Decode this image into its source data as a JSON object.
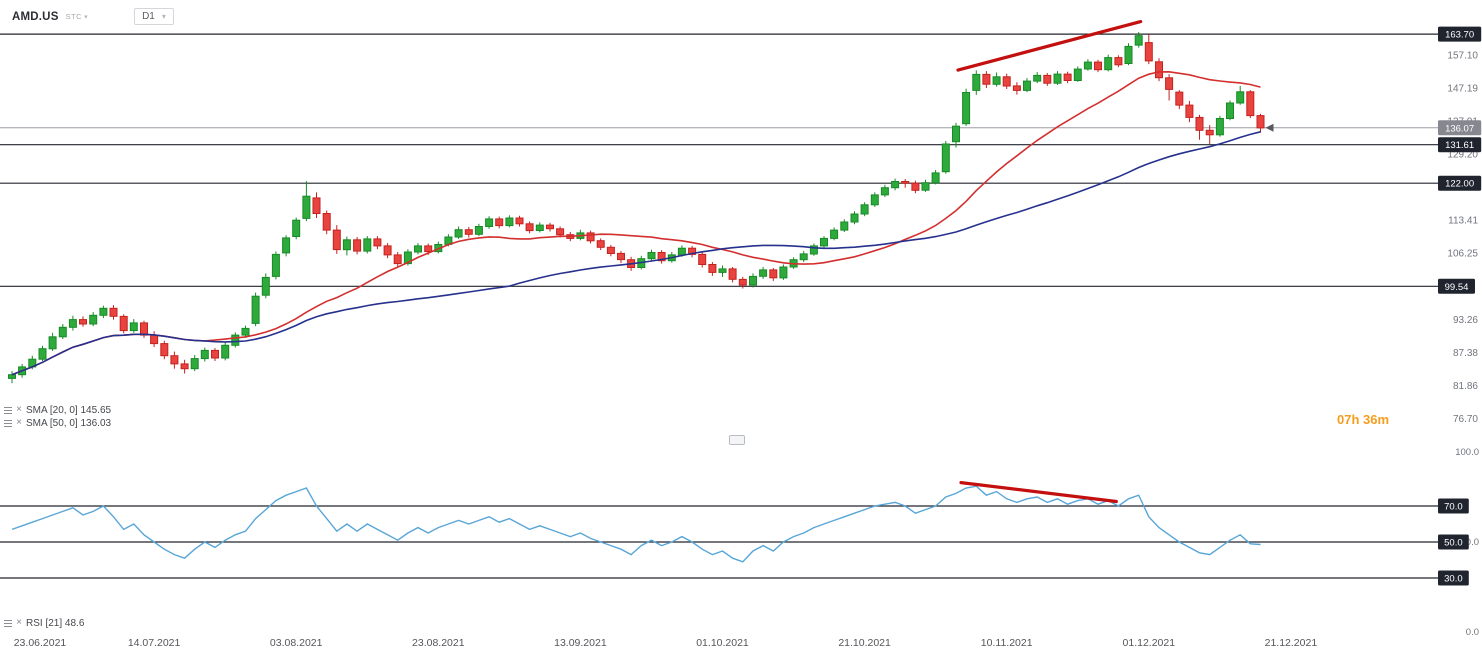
{
  "header": {
    "symbol": "AMD.US",
    "market_tag": "STC",
    "timeframe": "D1"
  },
  "indicators": {
    "sma20": {
      "label": "SMA [20, 0]",
      "value": "145.65"
    },
    "sma50": {
      "label": "SMA [50, 0]",
      "value": "136.03"
    },
    "rsi": {
      "label": "RSI [21]",
      "value": "48.6"
    }
  },
  "countdown": {
    "label": "07h 36m"
  },
  "colors": {
    "up": "#2eaa3c",
    "up_border": "#178a26",
    "down": "#e8433f",
    "down_border": "#c5221f",
    "sma20": "#d32f2f",
    "sma50": "#26318d",
    "rsi": "#58a6d8",
    "trendline": "#c40f0f",
    "level_line": "#23262f",
    "level_badge": "#20242f",
    "current_line": "#9b9ea6",
    "current_badge": "#85888f"
  },
  "chart_data": {
    "type": "candlestick",
    "symbol": "AMD.US",
    "timeframe": "D1",
    "price_axis_ticks": [
      "157.10",
      "147.19",
      "137.91",
      "129.20",
      "121.04",
      "113.41",
      "106.25",
      "93.26",
      "87.38",
      "81.86",
      "76.70"
    ],
    "rsi_axis_ticks": [
      "100.0",
      "50.0",
      "0.0"
    ],
    "levels": [
      {
        "price": 163.7,
        "label": "163.70"
      },
      {
        "price": 131.61,
        "label": "131.61"
      },
      {
        "price": 122.0,
        "label": "122.00"
      },
      {
        "price": 99.54,
        "label": "99.54"
      }
    ],
    "rsi_levels": [
      {
        "value": 70,
        "label": "70.0"
      },
      {
        "value": 50,
        "label": "50.0"
      },
      {
        "value": 30,
        "label": "30.0"
      }
    ],
    "current_price": {
      "value": 136.07,
      "label": "136.07"
    },
    "time_labels": [
      {
        "i": 0,
        "label": "23.06.2021"
      },
      {
        "i": 14,
        "label": "14.07.2021"
      },
      {
        "i": 28,
        "label": "03.08.2021"
      },
      {
        "i": 42,
        "label": "23.08.2021"
      },
      {
        "i": 56,
        "label": "13.09.2021"
      },
      {
        "i": 70,
        "label": "01.10.2021"
      },
      {
        "i": 84,
        "label": "21.10.2021"
      },
      {
        "i": 98,
        "label": "10.11.2021"
      },
      {
        "i": 112,
        "label": "01.12.2021"
      },
      {
        "i": 126,
        "label": "21.12.2021"
      }
    ],
    "trendlines": [
      {
        "pane": "price",
        "from_i": 93.2,
        "from_v": 152.5,
        "to_i": 111.2,
        "to_v": 167.8
      },
      {
        "pane": "rsi",
        "from_i": 93.5,
        "from_v": 83.0,
        "to_i": 108.8,
        "to_v": 72.5
      }
    ],
    "candles": [
      [
        83.0,
        84.2,
        82.2,
        83.6
      ],
      [
        83.6,
        85.4,
        83.1,
        84.9
      ],
      [
        84.9,
        86.8,
        84.5,
        86.2
      ],
      [
        86.2,
        88.5,
        85.9,
        88.0
      ],
      [
        88.0,
        90.8,
        87.6,
        90.1
      ],
      [
        90.1,
        92.4,
        89.7,
        91.8
      ],
      [
        91.8,
        93.9,
        91.2,
        93.2
      ],
      [
        93.2,
        93.8,
        91.9,
        92.4
      ],
      [
        92.4,
        94.6,
        92.0,
        94.0
      ],
      [
        94.0,
        95.8,
        93.5,
        95.3
      ],
      [
        95.3,
        95.9,
        93.2,
        93.8
      ],
      [
        93.8,
        94.2,
        90.7,
        91.2
      ],
      [
        91.2,
        93.3,
        90.8,
        92.6
      ],
      [
        92.6,
        93.0,
        89.9,
        90.4
      ],
      [
        90.4,
        91.1,
        88.3,
        88.9
      ],
      [
        88.9,
        89.4,
        86.2,
        86.8
      ],
      [
        86.8,
        87.5,
        84.6,
        85.4
      ],
      [
        85.4,
        86.1,
        83.8,
        84.6
      ],
      [
        84.6,
        86.9,
        84.2,
        86.3
      ],
      [
        86.3,
        88.2,
        85.8,
        87.7
      ],
      [
        87.7,
        88.1,
        85.9,
        86.4
      ],
      [
        86.4,
        89.1,
        86.0,
        88.6
      ],
      [
        88.6,
        90.9,
        88.2,
        90.4
      ],
      [
        90.4,
        92.1,
        89.9,
        91.6
      ],
      [
        92.5,
        98.3,
        92.0,
        97.6
      ],
      [
        97.8,
        102.1,
        97.2,
        101.3
      ],
      [
        101.5,
        106.6,
        100.9,
        106.0
      ],
      [
        106.3,
        110.1,
        105.6,
        109.5
      ],
      [
        109.8,
        114.0,
        109.2,
        113.4
      ],
      [
        113.8,
        122.5,
        113.2,
        118.9
      ],
      [
        118.5,
        119.8,
        113.9,
        114.9
      ],
      [
        114.9,
        115.6,
        110.3,
        111.2
      ],
      [
        111.2,
        112.3,
        106.1,
        107.0
      ],
      [
        107.0,
        109.8,
        105.8,
        109.1
      ],
      [
        109.1,
        109.7,
        106.0,
        106.7
      ],
      [
        106.7,
        109.9,
        106.2,
        109.3
      ],
      [
        109.3,
        109.9,
        107.1,
        107.8
      ],
      [
        107.8,
        108.4,
        105.2,
        105.9
      ],
      [
        105.9,
        106.5,
        103.3,
        104.1
      ],
      [
        104.1,
        107.1,
        103.7,
        106.5
      ],
      [
        106.5,
        108.4,
        106.0,
        107.8
      ],
      [
        107.8,
        108.3,
        105.9,
        106.6
      ],
      [
        106.6,
        108.7,
        106.2,
        108.1
      ],
      [
        108.1,
        110.3,
        107.7,
        109.7
      ],
      [
        109.7,
        112.0,
        109.3,
        111.3
      ],
      [
        111.3,
        111.9,
        109.6,
        110.3
      ],
      [
        110.3,
        112.6,
        109.9,
        112.0
      ],
      [
        112.0,
        114.3,
        111.5,
        113.7
      ],
      [
        113.7,
        114.2,
        111.6,
        112.2
      ],
      [
        112.2,
        114.5,
        111.8,
        113.9
      ],
      [
        113.9,
        114.4,
        112.0,
        112.6
      ],
      [
        112.6,
        113.1,
        110.5,
        111.1
      ],
      [
        111.1,
        112.9,
        110.7,
        112.3
      ],
      [
        112.3,
        112.8,
        110.9,
        111.5
      ],
      [
        111.5,
        112.0,
        109.6,
        110.2
      ],
      [
        110.2,
        110.8,
        108.8,
        109.4
      ],
      [
        109.4,
        111.3,
        109.0,
        110.6
      ],
      [
        110.6,
        111.1,
        108.3,
        108.9
      ],
      [
        108.9,
        109.4,
        106.9,
        107.5
      ],
      [
        107.5,
        108.0,
        105.6,
        106.2
      ],
      [
        106.2,
        106.7,
        104.2,
        104.9
      ],
      [
        104.9,
        105.5,
        102.6,
        103.3
      ],
      [
        103.3,
        105.7,
        102.9,
        105.1
      ],
      [
        105.1,
        107.0,
        104.7,
        106.4
      ],
      [
        106.4,
        106.9,
        104.1,
        104.7
      ],
      [
        104.7,
        106.5,
        104.3,
        105.9
      ],
      [
        105.9,
        107.9,
        105.5,
        107.3
      ],
      [
        107.3,
        107.8,
        105.4,
        106.0
      ],
      [
        106.0,
        106.5,
        103.3,
        103.9
      ],
      [
        103.9,
        104.4,
        101.6,
        102.3
      ],
      [
        102.3,
        103.7,
        101.4,
        103.0
      ],
      [
        103.0,
        103.4,
        100.3,
        100.9
      ],
      [
        100.9,
        101.4,
        99.1,
        99.8
      ],
      [
        99.8,
        102.1,
        99.3,
        101.5
      ],
      [
        101.5,
        103.4,
        101.0,
        102.8
      ],
      [
        102.8,
        103.2,
        100.6,
        101.2
      ],
      [
        101.2,
        103.9,
        100.8,
        103.4
      ],
      [
        103.4,
        105.4,
        103.0,
        104.9
      ],
      [
        104.9,
        106.7,
        104.4,
        106.1
      ],
      [
        106.1,
        108.3,
        105.7,
        107.8
      ],
      [
        107.8,
        109.9,
        107.3,
        109.4
      ],
      [
        109.4,
        111.8,
        109.0,
        111.2
      ],
      [
        111.2,
        113.6,
        110.8,
        113.0
      ],
      [
        113.0,
        115.4,
        112.5,
        114.8
      ],
      [
        114.8,
        117.5,
        114.3,
        116.9
      ],
      [
        116.9,
        119.8,
        116.4,
        119.2
      ],
      [
        119.2,
        121.6,
        118.7,
        120.9
      ],
      [
        120.9,
        123.1,
        120.3,
        122.4
      ],
      [
        122.4,
        123.0,
        120.9,
        122.0
      ],
      [
        122.0,
        122.6,
        119.6,
        120.3
      ],
      [
        120.3,
        122.8,
        119.9,
        122.1
      ],
      [
        122.1,
        125.2,
        121.7,
        124.5
      ],
      [
        124.8,
        132.6,
        124.3,
        131.8
      ],
      [
        132.4,
        137.4,
        130.9,
        136.5
      ],
      [
        137.2,
        147.0,
        136.6,
        145.9
      ],
      [
        146.5,
        152.4,
        145.2,
        151.2
      ],
      [
        151.2,
        152.2,
        147.2,
        148.3
      ],
      [
        148.3,
        151.8,
        147.6,
        150.5
      ],
      [
        150.5,
        151.4,
        146.9,
        147.8
      ],
      [
        147.8,
        148.9,
        145.3,
        146.5
      ],
      [
        146.5,
        150.1,
        146.0,
        149.2
      ],
      [
        149.2,
        151.9,
        148.6,
        150.9
      ],
      [
        150.9,
        151.6,
        147.8,
        148.6
      ],
      [
        148.6,
        152.2,
        148.1,
        151.3
      ],
      [
        151.3,
        152.0,
        148.6,
        149.4
      ],
      [
        149.4,
        153.6,
        149.0,
        152.8
      ],
      [
        152.8,
        155.8,
        152.3,
        154.9
      ],
      [
        154.9,
        155.6,
        151.9,
        152.6
      ],
      [
        152.6,
        157.2,
        152.1,
        156.3
      ],
      [
        156.3,
        157.0,
        153.4,
        154.1
      ],
      [
        154.5,
        160.8,
        154.0,
        159.8
      ],
      [
        160.2,
        164.4,
        159.4,
        163.2
      ],
      [
        161.0,
        163.6,
        154.3,
        155.3
      ],
      [
        155.0,
        156.1,
        149.2,
        150.2
      ],
      [
        150.2,
        151.3,
        143.6,
        146.8
      ],
      [
        146.0,
        146.6,
        141.2,
        142.3
      ],
      [
        142.3,
        143.5,
        137.6,
        138.9
      ],
      [
        138.9,
        139.6,
        132.9,
        135.4
      ],
      [
        135.4,
        136.8,
        131.8,
        134.2
      ],
      [
        134.2,
        139.3,
        133.7,
        138.6
      ],
      [
        138.6,
        143.6,
        138.1,
        142.9
      ],
      [
        142.9,
        147.8,
        142.4,
        146.1
      ],
      [
        146.1,
        146.6,
        138.7,
        139.4
      ],
      [
        139.4,
        139.9,
        134.8,
        136.07
      ]
    ],
    "rsi21": [
      57,
      59,
      61,
      63,
      65,
      67,
      69,
      65,
      67,
      70,
      64,
      57,
      60,
      54,
      50,
      46,
      43,
      41,
      46,
      50,
      47,
      51,
      54,
      56,
      63,
      68,
      73,
      76,
      78,
      80,
      70,
      63,
      56,
      60,
      56,
      60,
      57,
      54,
      51,
      55,
      58,
      55,
      58,
      60,
      62,
      60,
      62,
      64,
      61,
      63,
      60,
      57,
      59,
      57,
      55,
      53,
      55,
      52,
      50,
      48,
      46,
      43,
      48,
      51,
      48,
      50,
      53,
      50,
      46,
      43,
      45,
      41,
      39,
      45,
      48,
      45,
      50,
      53,
      55,
      58,
      60,
      62,
      64,
      66,
      68,
      70,
      71,
      72,
      70,
      66,
      68,
      70,
      75,
      77,
      80,
      81,
      76,
      78,
      74,
      72,
      74,
      75,
      72,
      74,
      71,
      73,
      74,
      71,
      73,
      70,
      74,
      76,
      64,
      58,
      54,
      50,
      47,
      44,
      43,
      47,
      51,
      54,
      49,
      48.6
    ]
  }
}
